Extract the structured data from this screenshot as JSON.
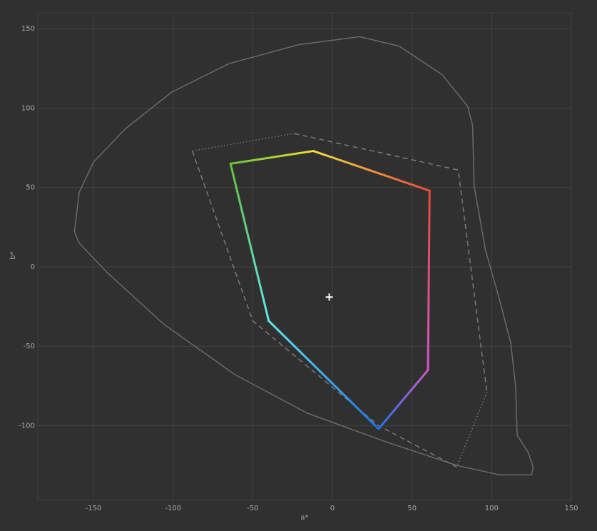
{
  "chart_data": {
    "type": "line",
    "x_label": "a*",
    "y_label": "b*",
    "xlim": [
      -185,
      150
    ],
    "ylim": [
      -147,
      160
    ],
    "xticks": [
      -150,
      -100,
      -50,
      0,
      50,
      100,
      150
    ],
    "yticks": [
      -100,
      -50,
      0,
      50,
      100,
      150
    ],
    "grid": true,
    "series": [
      {
        "style": "solid",
        "closed": true,
        "color": "#6a6a6a",
        "x": [
          -162,
          -159,
          -150,
          -130,
          -101,
          -65,
          -21,
          17,
          42,
          69,
          85,
          88,
          89,
          96,
          105,
          112,
          115,
          116,
          123,
          126,
          125,
          105,
          78,
          33,
          -16,
          -61,
          -106,
          -142,
          -159
        ],
        "values": [
          22,
          47,
          66,
          87,
          110,
          128,
          140,
          145,
          139,
          121,
          101,
          89,
          51,
          11,
          -21,
          -48,
          -75,
          -106,
          -117,
          -126,
          -131,
          -131,
          -125,
          -110,
          -92,
          -68,
          -36,
          -3,
          15
        ]
      },
      {
        "style": "dashed",
        "closed": false,
        "color": "#7a7a7a",
        "x": [
          -88,
          -50,
          29,
          78,
          null,
          -24,
          79,
          97
        ],
        "values": [
          73,
          -34,
          -100,
          -126,
          null,
          84,
          61,
          -79
        ]
      },
      {
        "style": "dotted",
        "closed": false,
        "color": "#7a7a7a",
        "x": [
          -88,
          -24,
          null,
          97,
          78
        ],
        "values": [
          73,
          84,
          null,
          -79,
          -126
        ]
      },
      {
        "style": "gradient",
        "closed": true,
        "x": [
          -64,
          -12,
          61,
          60,
          29,
          -40
        ],
        "values": [
          65,
          73,
          48,
          -65,
          -102,
          -34
        ],
        "colors": [
          "#63c43a",
          "#f1dc3c",
          "#e8493a",
          "#d256cf",
          "#1c74ea",
          "#5fe6ea"
        ]
      },
      {
        "style": "marker",
        "closed": false,
        "color": "#ffffff",
        "x": [
          -2
        ],
        "values": [
          -19
        ]
      }
    ]
  }
}
